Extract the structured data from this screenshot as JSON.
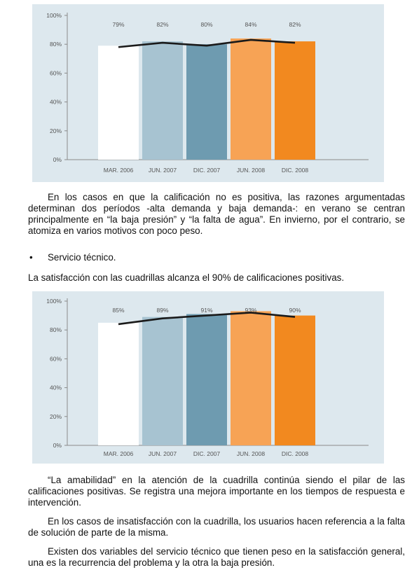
{
  "chart_data": [
    {
      "type": "bar",
      "categories": [
        "MAR. 2006",
        "JUN. 2007",
        "DIC. 2007",
        "JUN. 2008",
        "DIC. 2008"
      ],
      "values": [
        79,
        82,
        80,
        84,
        82
      ],
      "value_labels": [
        "79%",
        "82%",
        "80%",
        "84%",
        "82%"
      ],
      "yticks": [
        "0%",
        "20%",
        "40%",
        "60%",
        "80%",
        "100%"
      ],
      "ylim": [
        0,
        100
      ],
      "line_overlay": true,
      "bar_colors": [
        "#ffffff",
        "#a7c3d1",
        "#6e9bb0",
        "#f7a355",
        "#f2891f"
      ],
      "line_color": "#1a1a1a",
      "background": "#dde8ee",
      "grid": false
    },
    {
      "type": "bar",
      "categories": [
        "MAR. 2006",
        "JUN. 2007",
        "DIC. 2007",
        "JUN. 2008",
        "DIC. 2008"
      ],
      "values": [
        85,
        89,
        91,
        93,
        90
      ],
      "value_labels": [
        "85%",
        "89%",
        "91%",
        "93%",
        "90%"
      ],
      "yticks": [
        "0%",
        "20%",
        "40%",
        "60%",
        "80%",
        "100%"
      ],
      "ylim": [
        0,
        100
      ],
      "line_overlay": true,
      "bar_colors": [
        "#ffffff",
        "#a7c3d1",
        "#6e9bb0",
        "#f7a355",
        "#f2891f"
      ],
      "line_color": "#1a1a1a",
      "background": "#dde8ee",
      "grid": false
    }
  ],
  "text": {
    "para1": "En los casos en que la calificación no es positiva, las razones argumentadas determinan dos períodos -alta demanda y baja demanda-: en verano se centran principalmente en “la baja presión” y “la falta de agua”. En invierno, por el contrario, se atomiza en varios motivos con poco peso.",
    "bullet_symbol": "•",
    "bullet": "Servicio técnico.",
    "para2": "La satisfacción con las cuadrillas alcanza el 90% de calificaciones positivas.",
    "para3": "“La amabilidad” en la atención de la cuadrilla continúa siendo el pilar de las calificaciones positivas. Se registra una mejora importante en los tiempos de respuesta e intervención.",
    "para4": "En los casos de insatisfacción con la cuadrilla, los usuarios hacen referencia a la falta de solución de parte de la misma.",
    "para5": "Existen dos variables del servicio técnico que tienen peso en la satisfacción general, una es la recurrencia del problema y la otra la baja presión."
  }
}
